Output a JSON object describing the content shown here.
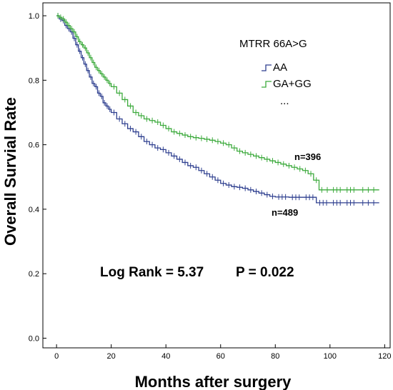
{
  "chart_data": {
    "type": "line",
    "title": "",
    "xlabel": "Months after surgery",
    "ylabel": "Overall Survial Rate",
    "xlim": [
      -5,
      122
    ],
    "ylim": [
      -0.03,
      1.04
    ],
    "xticks": [
      0,
      20,
      40,
      60,
      80,
      100,
      120
    ],
    "yticks": [
      0.0,
      0.2,
      0.4,
      0.6,
      0.8,
      1.0
    ],
    "ytick_labels": [
      "0.0",
      "0.2",
      "0.4",
      "0.6",
      "0.8",
      "1.0"
    ],
    "legend": {
      "title": "MTRR  66A>G",
      "entries": [
        "AA",
        "GA+GG"
      ],
      "extra": "...",
      "position": "top-right"
    },
    "annotations": {
      "log_rank": "Log Rank = 5.37",
      "p_value": "P = 0.022",
      "n_ga_gg": "n=396",
      "n_aa": "n=489"
    },
    "series": [
      {
        "name": "AA",
        "color": "#2e3f8f",
        "x": [
          0,
          1,
          2,
          3,
          4,
          5,
          6,
          7,
          8,
          9,
          10,
          11,
          12,
          13,
          14,
          15,
          16,
          17,
          18,
          19,
          20,
          22,
          24,
          26,
          28,
          30,
          32,
          34,
          36,
          38,
          40,
          42,
          44,
          46,
          48,
          50,
          52,
          54,
          56,
          58,
          60,
          62,
          64,
          66,
          68,
          70,
          72,
          74,
          76,
          78,
          80,
          85,
          90,
          95,
          100,
          105,
          110,
          118
        ],
        "y": [
          1.0,
          0.99,
          0.985,
          0.97,
          0.96,
          0.95,
          0.93,
          0.91,
          0.89,
          0.87,
          0.85,
          0.83,
          0.81,
          0.79,
          0.78,
          0.76,
          0.75,
          0.73,
          0.72,
          0.71,
          0.7,
          0.68,
          0.665,
          0.65,
          0.64,
          0.625,
          0.61,
          0.6,
          0.59,
          0.585,
          0.575,
          0.565,
          0.555,
          0.545,
          0.535,
          0.53,
          0.52,
          0.51,
          0.5,
          0.49,
          0.48,
          0.475,
          0.47,
          0.468,
          0.465,
          0.46,
          0.455,
          0.45,
          0.445,
          0.44,
          0.438,
          0.437,
          0.437,
          0.42,
          0.42,
          0.42,
          0.42,
          0.42
        ]
      },
      {
        "name": "GA+GG",
        "color": "#3caa3c",
        "x": [
          0,
          1,
          2,
          3,
          4,
          5,
          6,
          7,
          8,
          9,
          10,
          11,
          12,
          13,
          14,
          15,
          16,
          17,
          18,
          19,
          20,
          22,
          24,
          26,
          28,
          30,
          32,
          34,
          36,
          38,
          40,
          42,
          44,
          46,
          48,
          50,
          52,
          54,
          56,
          58,
          60,
          62,
          64,
          66,
          68,
          70,
          72,
          74,
          76,
          78,
          80,
          82,
          84,
          86,
          88,
          90,
          92,
          94,
          96,
          98,
          100,
          105,
          110,
          118
        ],
        "y": [
          1.0,
          0.995,
          0.99,
          0.98,
          0.97,
          0.96,
          0.95,
          0.935,
          0.92,
          0.91,
          0.9,
          0.885,
          0.87,
          0.855,
          0.84,
          0.83,
          0.82,
          0.81,
          0.8,
          0.79,
          0.78,
          0.76,
          0.74,
          0.72,
          0.7,
          0.69,
          0.68,
          0.675,
          0.67,
          0.66,
          0.65,
          0.64,
          0.635,
          0.63,
          0.625,
          0.622,
          0.62,
          0.617,
          0.614,
          0.61,
          0.605,
          0.6,
          0.59,
          0.58,
          0.575,
          0.57,
          0.565,
          0.56,
          0.555,
          0.55,
          0.545,
          0.54,
          0.535,
          0.53,
          0.525,
          0.52,
          0.51,
          0.49,
          0.46,
          0.46,
          0.46,
          0.46,
          0.46,
          0.46
        ]
      }
    ]
  }
}
